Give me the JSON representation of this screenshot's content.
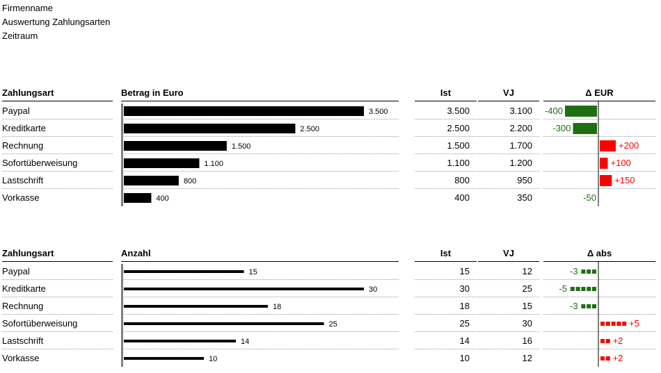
{
  "header": {
    "company": "Firmenname",
    "report": "Auswertung Zahlungsarten",
    "period": "Zeitraum"
  },
  "colors": {
    "bar": "#000000",
    "positive_delta": "#1f6e12",
    "negative_delta": "#ff0000"
  },
  "tables": [
    {
      "col_label": "Zahlungsart",
      "col_chart": "Betrag in Euro",
      "col_ist": "Ist",
      "col_vj": "VJ",
      "col_delta": "Δ EUR",
      "delta_style": "bar",
      "rows": [
        {
          "label": "Paypal",
          "value_label": "3.500",
          "ist": "3.500",
          "vj": "3.100",
          "delta_label": "-400"
        },
        {
          "label": "Kreditkarte",
          "value_label": "2.500",
          "ist": "2.500",
          "vj": "2.200",
          "delta_label": "-300"
        },
        {
          "label": "Rechnung",
          "value_label": "1.500",
          "ist": "1.500",
          "vj": "1.700",
          "delta_label": "+200"
        },
        {
          "label": "Sofortüberweisung",
          "value_label": "1.100",
          "ist": "1.100",
          "vj": "1.200",
          "delta_label": "+100"
        },
        {
          "label": "Lastschrift",
          "value_label": "800",
          "ist": "800",
          "vj": "950",
          "delta_label": "+150"
        },
        {
          "label": "Vorkasse",
          "value_label": "400",
          "ist": "400",
          "vj": "350",
          "delta_label": "-50"
        }
      ]
    },
    {
      "col_label": "Zahlungsart",
      "col_chart": "Anzahl",
      "col_ist": "Ist",
      "col_vj": "VJ",
      "col_delta": "Δ abs",
      "delta_style": "squares",
      "rows": [
        {
          "label": "Paypal",
          "value_label": "15",
          "ist": "15",
          "vj": "12",
          "delta_label": "-3"
        },
        {
          "label": "Kreditkarte",
          "value_label": "30",
          "ist": "30",
          "vj": "25",
          "delta_label": "-5"
        },
        {
          "label": "Rechnung",
          "value_label": "18",
          "ist": "18",
          "vj": "15",
          "delta_label": "-3"
        },
        {
          "label": "Sofortüberweisung",
          "value_label": "25",
          "ist": "25",
          "vj": "30",
          "delta_label": "+5"
        },
        {
          "label": "Lastschrift",
          "value_label": "14",
          "ist": "14",
          "vj": "16",
          "delta_label": "+2"
        },
        {
          "label": "Vorkasse",
          "value_label": "10",
          "ist": "10",
          "vj": "12",
          "delta_label": "+2"
        }
      ]
    }
  ],
  "chart_data": [
    {
      "type": "bar",
      "orientation": "horizontal",
      "title": "Betrag in Euro",
      "categories": [
        "Paypal",
        "Kreditkarte",
        "Rechnung",
        "Sofortüberweisung",
        "Lastschrift",
        "Vorkasse"
      ],
      "values": [
        3500,
        2500,
        1500,
        1100,
        800,
        400
      ],
      "ist": [
        3500,
        2500,
        1500,
        1100,
        800,
        400
      ],
      "vj": [
        3100,
        2200,
        1700,
        1200,
        950,
        350
      ],
      "delta": [
        -400,
        -300,
        200,
        100,
        150,
        -50
      ],
      "xlim": [
        0,
        3500
      ]
    },
    {
      "type": "bar",
      "orientation": "horizontal",
      "title": "Anzahl",
      "categories": [
        "Paypal",
        "Kreditkarte",
        "Rechnung",
        "Sofortüberweisung",
        "Lastschrift",
        "Vorkasse"
      ],
      "values": [
        15,
        30,
        18,
        25,
        14,
        10
      ],
      "ist": [
        15,
        30,
        18,
        25,
        14,
        10
      ],
      "vj": [
        12,
        25,
        15,
        30,
        16,
        12
      ],
      "delta": [
        -3,
        -5,
        -3,
        5,
        2,
        2
      ],
      "xlim": [
        0,
        30
      ]
    }
  ]
}
